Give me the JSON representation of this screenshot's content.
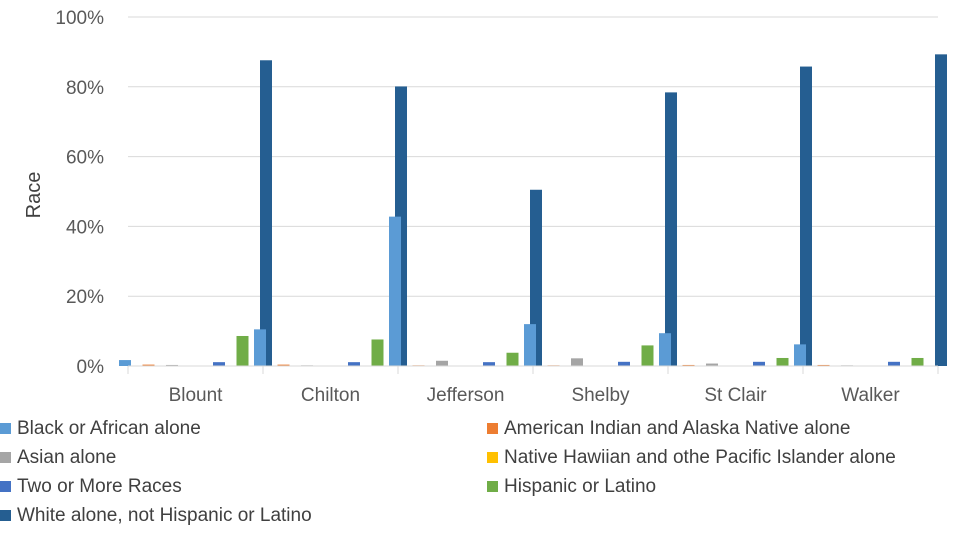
{
  "chart_data": {
    "type": "bar",
    "title": "",
    "xlabel": "",
    "ylabel": "Race",
    "ylim": [
      0,
      100
    ],
    "yticks": [
      "0%",
      "20%",
      "40%",
      "60%",
      "80%",
      "100%"
    ],
    "ytick_values": [
      0,
      20,
      40,
      60,
      80,
      100
    ],
    "grid": true,
    "legend_position": "bottom",
    "categories": [
      "Blount",
      "Chilton",
      "Jefferson",
      "Shelby",
      "St Clair",
      "Walker"
    ],
    "series": [
      {
        "name": "Black or African alone",
        "color": "#5b9bd5",
        "values": [
          1.7,
          10.5,
          42.8,
          12.0,
          9.4,
          6.2
        ]
      },
      {
        "name": "American Indian and Alaska Native alone",
        "color": "#ed7d31",
        "values": [
          0.4,
          0.4,
          0.2,
          0.2,
          0.3,
          0.3
        ]
      },
      {
        "name": "Asian alone",
        "color": "#a5a5a5",
        "values": [
          0.3,
          0.2,
          1.5,
          2.2,
          0.7,
          0.2
        ]
      },
      {
        "name": "Native Hawiian and othe Pacific Islander alone",
        "color": "#ffc000",
        "values": [
          0.1,
          0.0,
          0.0,
          0.0,
          0.0,
          0.0
        ]
      },
      {
        "name": "Two or More Races",
        "color": "#4472c4",
        "values": [
          1.1,
          1.1,
          1.1,
          1.2,
          1.2,
          1.2
        ]
      },
      {
        "name": "Hispanic or Latino",
        "color": "#70ad47",
        "values": [
          8.6,
          7.6,
          3.8,
          5.9,
          2.3,
          2.3
        ]
      },
      {
        "name": "White alone, not Hispanic or Latino",
        "color": "#255e91",
        "values": [
          87.6,
          80.1,
          50.5,
          78.4,
          85.8,
          89.3
        ]
      }
    ]
  }
}
